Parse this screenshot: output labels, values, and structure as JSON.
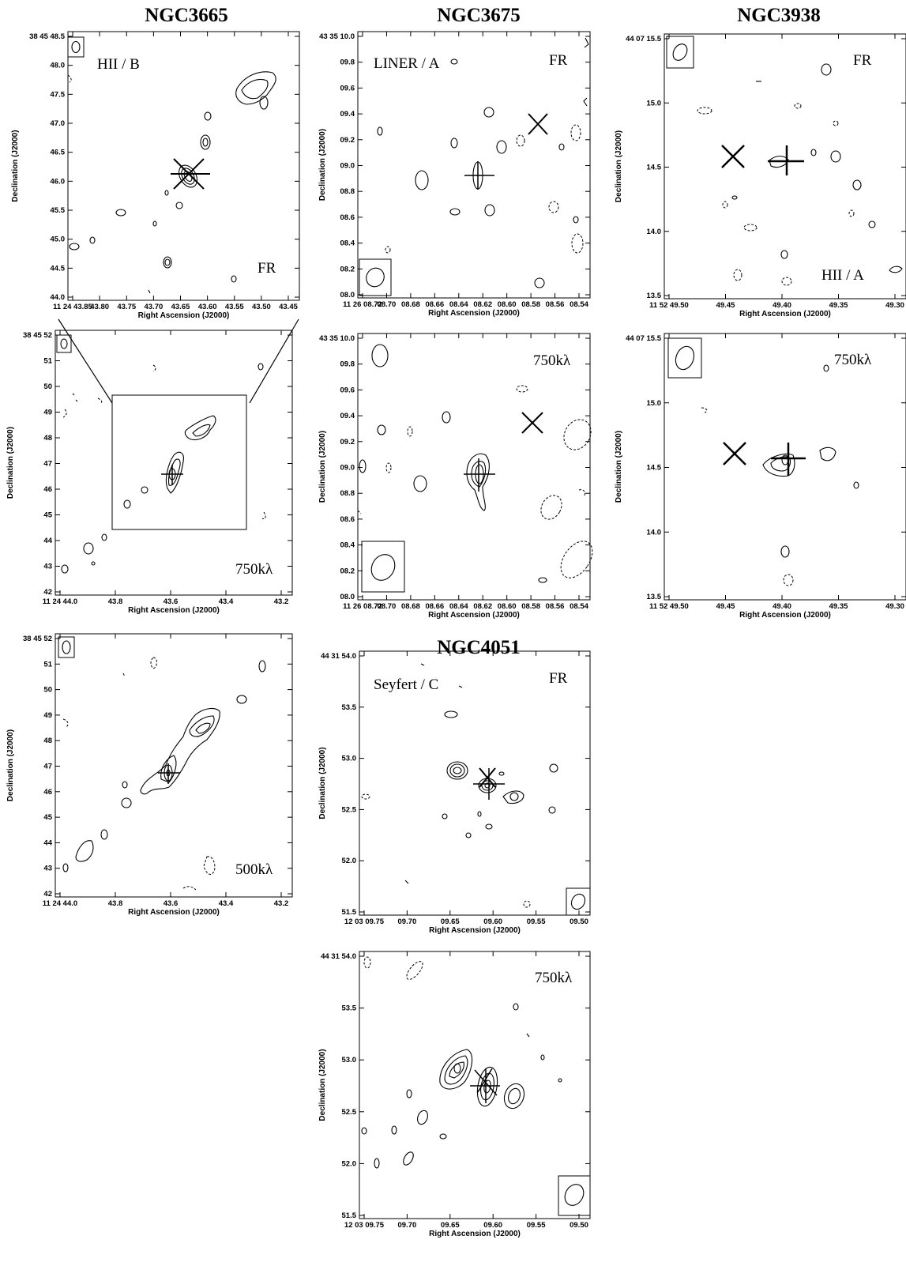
{
  "galaxies": [
    {
      "name": "NGC3665",
      "class": "HII / B"
    },
    {
      "name": "NGC3675",
      "class": "LINER / A"
    },
    {
      "name": "NGC3938",
      "class": "HII / A"
    },
    {
      "name": "NGC4051",
      "class": "Seyfert / C"
    }
  ],
  "chart_data": [
    {
      "id": "p1",
      "type": "contour",
      "galaxy": "NGC3665",
      "annotations": [
        "HII / B",
        "FR"
      ],
      "xlabel": "Right Ascension (J2000)",
      "ylabel": "Declination (J2000)",
      "xticks": [
        "11 24 43.85",
        "43.80",
        "43.75",
        "43.70",
        "43.65",
        "43.60",
        "43.55",
        "43.50",
        "43.45"
      ],
      "yticks": [
        "38 45 48.5",
        "48.0",
        "47.5",
        "47.0",
        "46.5",
        "46.0",
        "45.5",
        "45.0",
        "44.5",
        "44.0"
      ]
    },
    {
      "id": "p2",
      "type": "contour",
      "galaxy": "NGC3675",
      "annotations": [
        "LINER / A",
        "FR"
      ],
      "xlabel": "Right Ascension (J2000)",
      "ylabel": "Declination (J2000)",
      "xticks": [
        "11 26 08.72",
        "08.70",
        "08.68",
        "08.66",
        "08.64",
        "08.62",
        "08.60",
        "08.58",
        "08.56",
        "08.54"
      ],
      "yticks": [
        "43 35 10.0",
        "09.8",
        "09.6",
        "09.4",
        "09.2",
        "09.0",
        "08.8",
        "08.6",
        "08.4",
        "08.2",
        "08.0"
      ]
    },
    {
      "id": "p3",
      "type": "contour",
      "galaxy": "NGC3938",
      "annotations": [
        "FR",
        "HII / A"
      ],
      "xlabel": "Right Ascension (J2000)",
      "ylabel": "Declination (J2000)",
      "xticks": [
        "11 52 49.50",
        "49.45",
        "49.40",
        "49.35",
        "49.30"
      ],
      "yticks": [
        "44 07 15.5",
        "15.0",
        "14.5",
        "14.0",
        "13.5"
      ]
    },
    {
      "id": "p4",
      "type": "contour",
      "galaxy": "NGC3665",
      "annotations": [
        "750kλ"
      ],
      "xlabel": "Right Ascension (J2000)",
      "ylabel": "Declination (J2000)",
      "xticks": [
        "11 24 44.0",
        "43.8",
        "43.6",
        "43.4",
        "43.2"
      ],
      "yticks": [
        "38 45 52",
        "51",
        "50",
        "49",
        "48",
        "47",
        "46",
        "45",
        "44",
        "43",
        "42"
      ]
    },
    {
      "id": "p5",
      "type": "contour",
      "galaxy": "NGC3675",
      "annotations": [
        "750kλ"
      ],
      "xlabel": "Right Ascension (J2000)",
      "ylabel": "Declination (J2000)",
      "xticks": [
        "11 26 08.72",
        "08.70",
        "08.68",
        "08.66",
        "08.64",
        "08.62",
        "08.60",
        "08.58",
        "08.56",
        "08.54"
      ],
      "yticks": [
        "43 35 10.0",
        "09.8",
        "09.6",
        "09.4",
        "09.2",
        "09.0",
        "08.8",
        "08.6",
        "08.4",
        "08.2",
        "08.0"
      ]
    },
    {
      "id": "p6",
      "type": "contour",
      "galaxy": "NGC3938",
      "annotations": [
        "750kλ"
      ],
      "xlabel": "Right Ascension (J2000)",
      "ylabel": "Declination (J2000)",
      "xticks": [
        "11 52 49.50",
        "49.45",
        "49.40",
        "49.35",
        "49.30"
      ],
      "yticks": [
        "44 07 15.5",
        "15.0",
        "14.5",
        "14.0",
        "13.5"
      ]
    },
    {
      "id": "p7",
      "type": "contour",
      "galaxy": "NGC3665",
      "annotations": [
        "500kλ"
      ],
      "xlabel": "Right Ascension (J2000)",
      "ylabel": "Declination (J2000)",
      "xticks": [
        "11 24 44.0",
        "43.8",
        "43.6",
        "43.4",
        "43.2"
      ],
      "yticks": [
        "38 45 52",
        "51",
        "50",
        "49",
        "48",
        "47",
        "46",
        "45",
        "44",
        "43",
        "42"
      ]
    },
    {
      "id": "p8",
      "type": "contour",
      "galaxy": "NGC4051",
      "annotations": [
        "Seyfert / C",
        "FR"
      ],
      "xlabel": "Right Ascension (J2000)",
      "ylabel": "Declination (J2000)",
      "xticks": [
        "12 03 09.75",
        "09.70",
        "09.65",
        "09.60",
        "09.55",
        "09.50"
      ],
      "yticks": [
        "44 31 54.0",
        "53.5",
        "53.0",
        "52.5",
        "52.0",
        "51.5"
      ]
    },
    {
      "id": "p9",
      "type": "contour",
      "galaxy": "NGC4051",
      "annotations": [
        "750kλ"
      ],
      "xlabel": "Right Ascension (J2000)",
      "ylabel": "Declination (J2000)",
      "xticks": [
        "12 03 09.75",
        "09.70",
        "09.65",
        "09.60",
        "09.55",
        "09.50"
      ],
      "yticks": [
        "44 31 54.0",
        "53.5",
        "53.0",
        "52.5",
        "52.0",
        "51.5"
      ]
    }
  ]
}
